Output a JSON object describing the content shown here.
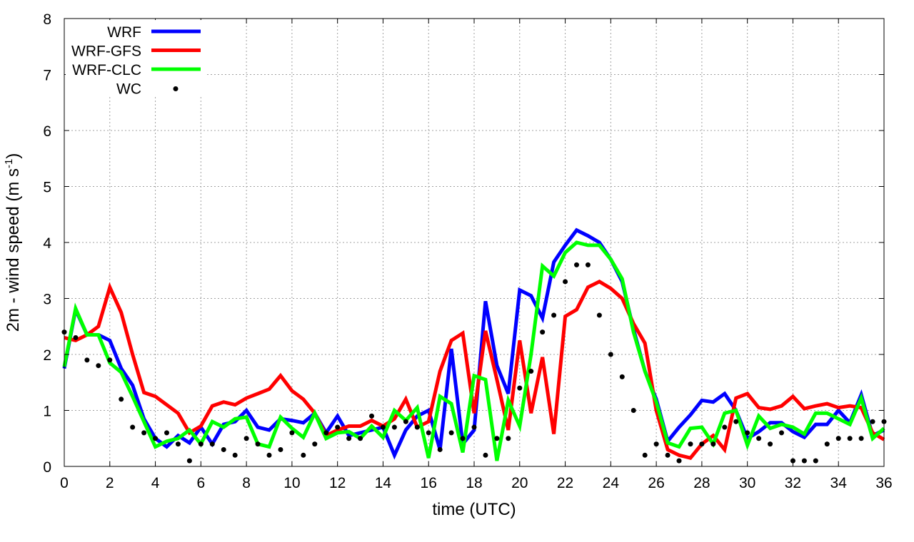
{
  "chart_data": {
    "type": "line",
    "xlabel": "time (UTC)",
    "ylabel_main": "2m - wind speed  (m s",
    "ylabel_sup": "-1",
    "ylabel_close": ")",
    "xlim": [
      0,
      36
    ],
    "ylim": [
      0,
      8
    ],
    "xticks": [
      0,
      2,
      4,
      6,
      8,
      10,
      12,
      14,
      16,
      18,
      20,
      22,
      24,
      26,
      28,
      30,
      32,
      34,
      36
    ],
    "yticks": [
      0,
      1,
      2,
      3,
      4,
      5,
      6,
      7,
      8
    ],
    "grid": true,
    "legend_position": "top-left",
    "x": [
      0,
      0.5,
      1,
      1.5,
      2,
      2.5,
      3,
      3.5,
      4,
      4.5,
      5,
      5.5,
      6,
      6.5,
      7,
      7.5,
      8,
      8.5,
      9,
      9.5,
      10,
      10.5,
      11,
      11.5,
      12,
      12.5,
      13,
      13.5,
      14,
      14.5,
      15,
      15.5,
      16,
      16.5,
      17,
      17.5,
      18,
      18.5,
      19,
      19.5,
      20,
      20.5,
      21,
      21.5,
      22,
      22.5,
      23,
      23.5,
      24,
      24.5,
      25,
      25.5,
      26,
      26.5,
      27,
      27.5,
      28,
      28.5,
      29,
      29.5,
      30,
      30.5,
      31,
      31.5,
      32,
      32.5,
      33,
      33.5,
      34,
      34.5,
      35,
      35.5,
      36
    ],
    "series": [
      {
        "name": "WRF",
        "style": "line",
        "color": "#0000ff",
        "values": [
          1.75,
          2.8,
          2.35,
          2.35,
          2.25,
          1.75,
          1.45,
          0.85,
          0.5,
          0.35,
          0.55,
          0.42,
          0.7,
          0.4,
          0.75,
          0.8,
          1.0,
          0.7,
          0.65,
          0.85,
          0.82,
          0.78,
          0.95,
          0.6,
          0.9,
          0.55,
          0.6,
          0.65,
          0.7,
          0.2,
          0.65,
          0.9,
          1.0,
          0.3,
          2.1,
          0.4,
          0.65,
          2.95,
          1.8,
          1.3,
          3.15,
          3.05,
          2.65,
          3.65,
          3.95,
          4.22,
          4.12,
          4.0,
          3.7,
          3.3,
          2.45,
          1.7,
          1.2,
          0.45,
          0.7,
          0.92,
          1.18,
          1.15,
          1.3,
          1.0,
          0.5,
          0.62,
          0.78,
          0.78,
          0.62,
          0.52,
          0.75,
          0.75,
          1.0,
          0.78,
          1.28,
          0.55,
          0.65
        ]
      },
      {
        "name": "WRF-GFS",
        "style": "line",
        "color": "#ff0000",
        "values": [
          2.3,
          2.25,
          2.35,
          2.5,
          3.2,
          2.75,
          2.0,
          1.32,
          1.25,
          1.1,
          0.95,
          0.6,
          0.72,
          1.08,
          1.15,
          1.1,
          1.22,
          1.3,
          1.38,
          1.62,
          1.35,
          1.2,
          0.95,
          0.55,
          0.65,
          0.72,
          0.72,
          0.82,
          0.72,
          0.85,
          1.2,
          0.7,
          0.8,
          1.7,
          2.25,
          2.38,
          0.95,
          2.42,
          1.55,
          0.65,
          2.25,
          0.95,
          1.95,
          0.58,
          2.68,
          2.8,
          3.2,
          3.3,
          3.18,
          3.0,
          2.55,
          2.2,
          1.0,
          0.3,
          0.2,
          0.15,
          0.4,
          0.55,
          0.3,
          1.22,
          1.3,
          1.05,
          1.02,
          1.08,
          1.25,
          1.03,
          1.08,
          1.12,
          1.05,
          1.08,
          1.05,
          0.6,
          0.48
        ]
      },
      {
        "name": "WRF-CLC",
        "style": "line",
        "color": "#00ff00",
        "values": [
          1.78,
          2.82,
          2.35,
          2.35,
          1.85,
          1.68,
          1.25,
          0.8,
          0.35,
          0.45,
          0.5,
          0.65,
          0.4,
          0.8,
          0.7,
          0.85,
          0.88,
          0.4,
          0.35,
          0.88,
          0.68,
          0.52,
          0.95,
          0.5,
          0.6,
          0.62,
          0.5,
          0.72,
          0.52,
          1.0,
          0.82,
          1.05,
          0.15,
          1.25,
          1.12,
          0.25,
          1.62,
          1.55,
          0.1,
          1.18,
          0.72,
          2.0,
          3.58,
          3.4,
          3.82,
          4.0,
          3.95,
          3.95,
          3.7,
          3.35,
          2.4,
          1.7,
          1.15,
          0.42,
          0.35,
          0.68,
          0.7,
          0.4,
          0.95,
          1.0,
          0.38,
          0.9,
          0.68,
          0.75,
          0.7,
          0.58,
          0.95,
          0.95,
          0.85,
          0.75,
          1.22,
          0.5,
          0.68
        ]
      },
      {
        "name": "WC",
        "style": "points",
        "color": "#000000",
        "values": [
          2.4,
          2.3,
          1.9,
          1.8,
          1.9,
          1.2,
          0.7,
          0.6,
          0.5,
          0.6,
          0.4,
          0.1,
          0.4,
          0.4,
          0.3,
          0.2,
          0.5,
          0.4,
          0.2,
          0.3,
          0.6,
          0.2,
          0.4,
          0.6,
          0.7,
          0.5,
          0.5,
          0.9,
          0.7,
          0.7,
          0.8,
          0.7,
          0.6,
          0.3,
          0.6,
          0.5,
          0.7,
          0.2,
          0.5,
          0.5,
          1.4,
          1.7,
          2.4,
          2.7,
          3.3,
          3.6,
          3.6,
          2.7,
          2.0,
          1.6,
          1.0,
          0.2,
          0.4,
          0.2,
          0.1,
          0.4,
          0.4,
          0.4,
          0.7,
          0.8,
          0.6,
          0.5,
          0.4,
          0.6,
          0.1,
          0.1,
          0.1,
          0.4,
          0.5,
          0.5,
          0.5,
          0.8,
          0.8
        ]
      }
    ]
  }
}
